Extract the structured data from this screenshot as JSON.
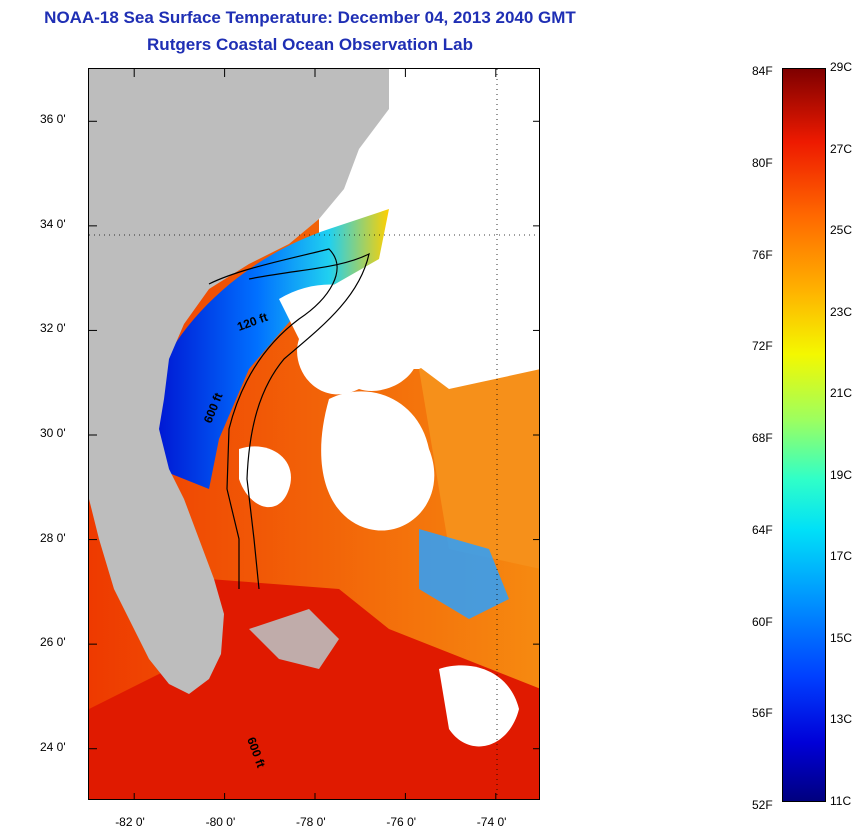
{
  "title_line1": "NOAA-18 Sea Surface Temperature:  December 04, 2013 2040 GMT",
  "title_line2": "Rutgers Coastal Ocean Observation Lab",
  "map": {
    "lon_range": [
      -83,
      -73
    ],
    "lat_range": [
      23,
      37
    ],
    "lat_ticks": [
      {
        "value": 36,
        "label": "36 0'"
      },
      {
        "value": 34,
        "label": "34 0'"
      },
      {
        "value": 32,
        "label": "32 0'"
      },
      {
        "value": 30,
        "label": "30 0'"
      },
      {
        "value": 28,
        "label": "28 0'"
      },
      {
        "value": 26,
        "label": "26 0'"
      },
      {
        "value": 24,
        "label": "24 0'"
      }
    ],
    "lon_ticks": [
      {
        "value": -82,
        "label": "-82 0'"
      },
      {
        "value": -80,
        "label": "-80 0'"
      },
      {
        "value": -78,
        "label": "-78 0'"
      },
      {
        "value": -76,
        "label": "-76 0'"
      },
      {
        "value": -74,
        "label": "-74 0'"
      }
    ],
    "contour_labels": [
      "120 ft",
      "600 ft",
      "600 ft"
    ],
    "colors": {
      "land": "#bdbdbd",
      "cloud": "#ffffff",
      "warm": "#e31a00",
      "orange": "#f26a00",
      "cold": "#0030ff"
    }
  },
  "colorbar": {
    "fahrenheit_labels": [
      "84F",
      "80F",
      "76F",
      "72F",
      "68F",
      "64F",
      "60F",
      "56F",
      "52F"
    ],
    "celsius_labels": [
      "29C",
      "27C",
      "25C",
      "23C",
      "21C",
      "19C",
      "17C",
      "15C",
      "13C",
      "11C"
    ],
    "min_c": 11,
    "max_c": 29
  }
}
